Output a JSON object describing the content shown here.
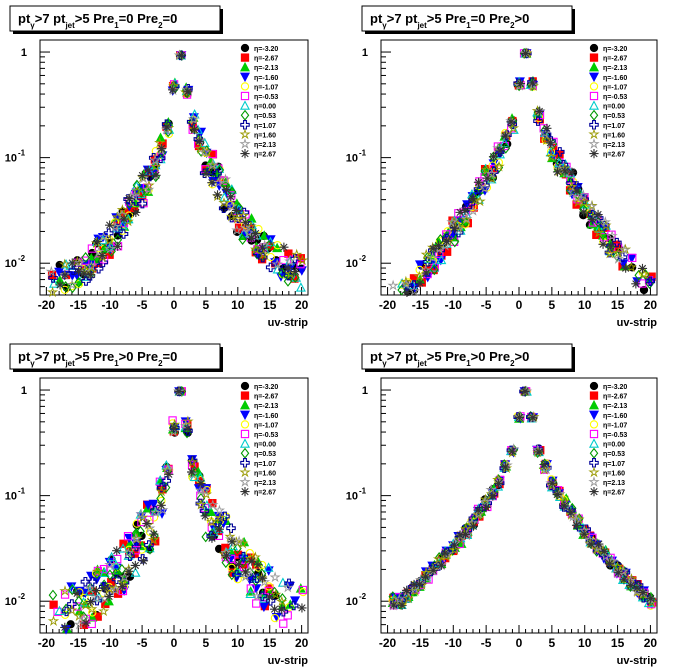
{
  "canvas": {
    "background": "#ffffff"
  },
  "markers": [
    "filled-circle",
    "filled-square",
    "filled-triangle-up",
    "filled-triangle-down",
    "open-circle",
    "open-square",
    "open-triangle-up",
    "open-diamond",
    "open-cross",
    "open-star",
    "asterisk"
  ],
  "chart_data": [
    {
      "type": "scatter",
      "title_parts": [
        "pt",
        "γ",
        ">7  pt",
        "jet",
        ">5  Pre",
        "1",
        "=0  Pre",
        "2",
        "=0"
      ],
      "xlabel": "uv-strip",
      "xlim": [
        -21,
        21
      ],
      "ylim": [
        0.005,
        1.3
      ],
      "yscale": "log",
      "xticks": [
        -20,
        -15,
        -10,
        -5,
        0,
        5,
        10,
        15,
        20
      ],
      "yticks": [
        {
          "v": 1,
          "label": "1"
        },
        {
          "v": 0.1,
          "label": "10",
          "exp": "-1"
        },
        {
          "v": 0.01,
          "label": "10",
          "exp": "-2"
        }
      ],
      "legend": {
        "position": "top-right"
      },
      "series": [
        {
          "name": "η=-3.20",
          "color": "#000000",
          "marker": "filled-circle"
        },
        {
          "name": "η=-2.67",
          "color": "#ff0000",
          "marker": "filled-square"
        },
        {
          "name": "η=-2.13",
          "color": "#00cc00",
          "marker": "filled-triangle-up"
        },
        {
          "name": "η=-1.60",
          "color": "#0000ff",
          "marker": "filled-triangle-down"
        },
        {
          "name": "η=-1.07",
          "color": "#ffff00",
          "marker": "open-circle"
        },
        {
          "name": "η=-0.53",
          "color": "#ff00ff",
          "marker": "open-square"
        },
        {
          "name": "η=0.00",
          "color": "#00cccc",
          "marker": "open-triangle-up"
        },
        {
          "name": "η=0.53",
          "color": "#009900",
          "marker": "open-diamond"
        },
        {
          "name": "η=1.07",
          "color": "#000099",
          "marker": "open-cross"
        },
        {
          "name": "η=1.60",
          "color": "#999900",
          "marker": "open-star"
        },
        {
          "name": "η=2.13",
          "color": "#999999",
          "marker": "open-star"
        },
        {
          "name": "η=2.67",
          "color": "#333333",
          "marker": "asterisk"
        }
      ],
      "profile": {
        "peak": [
          {
            "x": 0,
            "y": 0.47
          },
          {
            "x": 1,
            "y": 0.93
          },
          {
            "x": 2,
            "y": 0.43
          }
        ],
        "y_at_5": 0.1,
        "y_at_10": 0.028,
        "y_at_15": 0.012,
        "y_at_20": 0.008,
        "spread": 0.35
      }
    },
    {
      "type": "scatter",
      "title_parts": [
        "pt",
        "γ",
        ">7  pt",
        "jet",
        ">5  Pre",
        "1",
        "=0  Pre",
        "2",
        ">0"
      ],
      "xlabel": "uv-strip",
      "xlim": [
        -21,
        21
      ],
      "ylim": [
        0.005,
        1.3
      ],
      "yscale": "log",
      "xticks": [
        -20,
        -15,
        -10,
        -5,
        0,
        5,
        10,
        15,
        20
      ],
      "yticks": [
        {
          "v": 1,
          "label": "1"
        },
        {
          "v": 0.1,
          "label": "10",
          "exp": "-1"
        },
        {
          "v": 0.01,
          "label": "10",
          "exp": "-2"
        }
      ],
      "legend": {
        "position": "top-right"
      },
      "series": [
        {
          "name": "η=-3.20",
          "color": "#000000",
          "marker": "filled-circle"
        },
        {
          "name": "η=-2.67",
          "color": "#ff0000",
          "marker": "filled-square"
        },
        {
          "name": "η=-2.13",
          "color": "#00cc00",
          "marker": "filled-triangle-up"
        },
        {
          "name": "η=-1.60",
          "color": "#0000ff",
          "marker": "filled-triangle-down"
        },
        {
          "name": "η=-1.07",
          "color": "#ffff00",
          "marker": "open-circle"
        },
        {
          "name": "η=-0.53",
          "color": "#ff00ff",
          "marker": "open-square"
        },
        {
          "name": "η=0.00",
          "color": "#00cccc",
          "marker": "open-triangle-up"
        },
        {
          "name": "η=0.53",
          "color": "#009900",
          "marker": "open-diamond"
        },
        {
          "name": "η=1.07",
          "color": "#000099",
          "marker": "open-cross"
        },
        {
          "name": "η=1.60",
          "color": "#999900",
          "marker": "open-star"
        },
        {
          "name": "η=2.13",
          "color": "#999999",
          "marker": "open-star"
        },
        {
          "name": "η=2.67",
          "color": "#333333",
          "marker": "asterisk"
        }
      ],
      "profile": {
        "peak": [
          {
            "x": 0,
            "y": 0.5
          },
          {
            "x": 1,
            "y": 0.97
          },
          {
            "x": 2,
            "y": 0.5
          }
        ],
        "y_at_5": 0.12,
        "y_at_10": 0.035,
        "y_at_15": 0.013,
        "y_at_20": 0.006,
        "spread": 0.25
      }
    },
    {
      "type": "scatter",
      "title_parts": [
        "pt",
        "γ",
        ">7  pt",
        "jet",
        ">5  Pre",
        "1",
        ">0  Pre",
        "2",
        "=0"
      ],
      "xlabel": "uv-strip",
      "xlim": [
        -21,
        21
      ],
      "ylim": [
        0.005,
        1.3
      ],
      "yscale": "log",
      "xticks": [
        -20,
        -15,
        -10,
        -5,
        0,
        5,
        10,
        15,
        20
      ],
      "yticks": [
        {
          "v": 1,
          "label": "1"
        },
        {
          "v": 0.1,
          "label": "10",
          "exp": "-1"
        },
        {
          "v": 0.01,
          "label": "10",
          "exp": "-2"
        }
      ],
      "legend": {
        "position": "top-right"
      },
      "series": [
        {
          "name": "η=-3.20",
          "color": "#000000",
          "marker": "filled-circle"
        },
        {
          "name": "η=-2.67",
          "color": "#ff0000",
          "marker": "filled-square"
        },
        {
          "name": "η=-2.13",
          "color": "#00cc00",
          "marker": "filled-triangle-up"
        },
        {
          "name": "η=-1.60",
          "color": "#0000ff",
          "marker": "filled-triangle-down"
        },
        {
          "name": "η=-1.07",
          "color": "#ffff00",
          "marker": "open-circle"
        },
        {
          "name": "η=-0.53",
          "color": "#ff00ff",
          "marker": "open-square"
        },
        {
          "name": "η=0.00",
          "color": "#00cccc",
          "marker": "open-triangle-up"
        },
        {
          "name": "η=0.53",
          "color": "#009900",
          "marker": "open-diamond"
        },
        {
          "name": "η=1.07",
          "color": "#000099",
          "marker": "open-cross"
        },
        {
          "name": "η=1.60",
          "color": "#999900",
          "marker": "open-star"
        },
        {
          "name": "η=2.13",
          "color": "#999999",
          "marker": "open-star"
        },
        {
          "name": "η=2.67",
          "color": "#333333",
          "marker": "asterisk"
        }
      ],
      "profile": {
        "peak": [
          {
            "x": 0,
            "y": 0.45
          },
          {
            "x": 1,
            "y": 0.97
          },
          {
            "x": 2,
            "y": 0.45
          }
        ],
        "y_at_5": 0.07,
        "y_at_10": 0.025,
        "y_at_15": 0.012,
        "y_at_20": 0.008,
        "spread": 0.55
      }
    },
    {
      "type": "scatter",
      "title_parts": [
        "pt",
        "γ",
        ">7  pt",
        "jet",
        ">5  Pre",
        "1",
        ">0  Pre",
        "2",
        ">0"
      ],
      "xlabel": "uv-strip",
      "xlim": [
        -21,
        21
      ],
      "ylim": [
        0.005,
        1.3
      ],
      "yscale": "log",
      "xticks": [
        -20,
        -15,
        -10,
        -5,
        0,
        5,
        10,
        15,
        20
      ],
      "yticks": [
        {
          "v": 1,
          "label": "1"
        },
        {
          "v": 0.1,
          "label": "10",
          "exp": "-1"
        },
        {
          "v": 0.01,
          "label": "10",
          "exp": "-2"
        }
      ],
      "legend": {
        "position": "top-right"
      },
      "series": [
        {
          "name": "η=-3.20",
          "color": "#000000",
          "marker": "filled-circle"
        },
        {
          "name": "η=-2.67",
          "color": "#ff0000",
          "marker": "filled-square"
        },
        {
          "name": "η=-2.13",
          "color": "#00cc00",
          "marker": "filled-triangle-up"
        },
        {
          "name": "η=-1.60",
          "color": "#0000ff",
          "marker": "filled-triangle-down"
        },
        {
          "name": "η=-1.07",
          "color": "#ffff00",
          "marker": "open-circle"
        },
        {
          "name": "η=-0.53",
          "color": "#ff00ff",
          "marker": "open-square"
        },
        {
          "name": "η=0.00",
          "color": "#00cccc",
          "marker": "open-triangle-up"
        },
        {
          "name": "η=0.53",
          "color": "#009900",
          "marker": "open-diamond"
        },
        {
          "name": "η=1.07",
          "color": "#000099",
          "marker": "open-cross"
        },
        {
          "name": "η=1.60",
          "color": "#999900",
          "marker": "open-star"
        },
        {
          "name": "η=2.13",
          "color": "#999999",
          "marker": "open-star"
        },
        {
          "name": "η=2.67",
          "color": "#333333",
          "marker": "asterisk"
        }
      ],
      "profile": {
        "peak": [
          {
            "x": 0,
            "y": 0.55
          },
          {
            "x": 1,
            "y": 0.97
          },
          {
            "x": 2,
            "y": 0.55
          }
        ],
        "y_at_5": 0.13,
        "y_at_10": 0.045,
        "y_at_15": 0.02,
        "y_at_20": 0.01,
        "spread": 0.1
      }
    }
  ]
}
